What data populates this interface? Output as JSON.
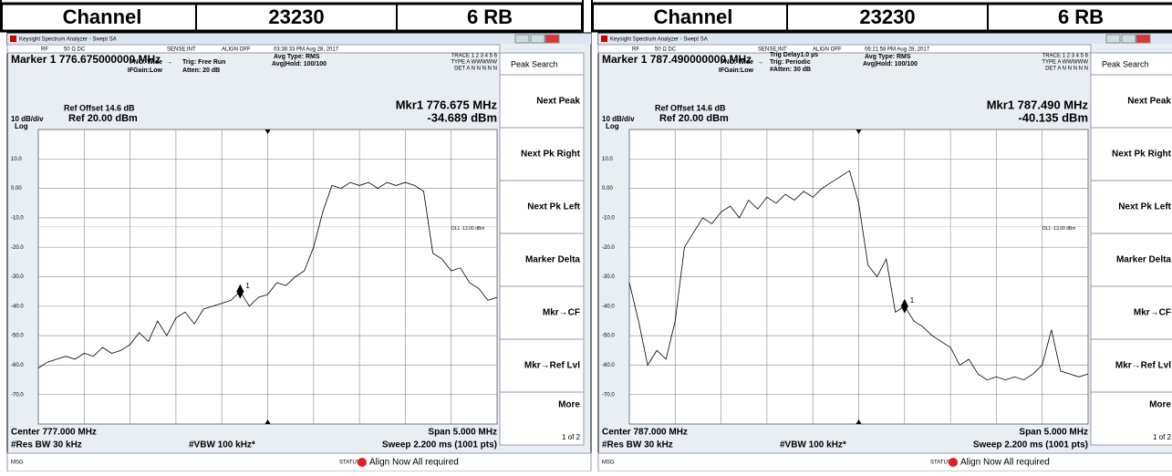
{
  "panels": [
    {
      "header": [
        "Channel",
        "23230",
        "6 RB"
      ],
      "app_title": "Keysight Spectrum Analyzer - Swept SA",
      "status_bar": [
        "RF",
        "50 Ω  DC",
        "SENSE:INT",
        "ALIGN OFF",
        "03:38:33 PM Aug 28, 2017"
      ],
      "marker_readout": "Marker 1 776.675000000 MHz",
      "settings": [
        "PNO: Wide",
        "IFGain:Low",
        "Trig: Free Run",
        "Atten: 20 dB",
        "Avg Type: RMS",
        "Avg|Hold: 100/100"
      ],
      "trace_info": [
        "TRACE 1 2 3 4 5 6",
        "TYPE A WWWWW",
        "DET A N N N N N"
      ],
      "ref_offset": "Ref Offset 14.6 dB",
      "scale": "10 dB/div",
      "ref_level": "Ref 20.00 dBm",
      "log": "Log",
      "mkr_freq": "Mkr1 776.675 MHz",
      "mkr_level": "-34.689 dBm",
      "display_line": "DL1 -13.00 dBm",
      "marker_label": "1",
      "ylim": [
        -80,
        20
      ],
      "yticks": [
        {
          "value": 10,
          "label": "10.0"
        },
        {
          "value": 0,
          "label": "0.00"
        },
        {
          "value": -10,
          "label": "-10.0"
        },
        {
          "value": -20,
          "label": "-20.0"
        },
        {
          "value": -30,
          "label": "-30.0"
        },
        {
          "value": -40,
          "label": "-40.0"
        },
        {
          "value": -50,
          "label": "-50.0"
        },
        {
          "value": -60,
          "label": "-60.0"
        },
        {
          "value": -70,
          "label": "-70.0"
        }
      ],
      "trace": [
        -61,
        -59,
        -58,
        -57,
        -58,
        -56,
        -57,
        -54,
        -56,
        -55,
        -53,
        -49,
        -52,
        -45,
        -50,
        -44,
        -42,
        -46,
        -41,
        -40,
        -39,
        -38,
        -35,
        -40,
        -37,
        -36,
        -32,
        -33,
        -30,
        -28,
        -20,
        -8,
        1,
        0,
        2,
        1,
        2,
        0,
        2,
        1,
        2,
        1,
        -1,
        -22,
        -24,
        -28,
        -27,
        -32,
        -34,
        -38,
        -37
      ],
      "softkeys": [
        "Peak Search",
        "Next Peak",
        "Next Pk Right",
        "Next Pk Left",
        "Marker Delta",
        "Mkr→CF",
        "Mkr→Ref Lvl",
        "More",
        "1 of 2"
      ],
      "bottom": [
        "Center 777.000 MHz",
        "#Res BW 30 kHz",
        "#VBW 100 kHz*",
        "Span 5.000 MHz",
        "Sweep  2.200 ms (1001 pts)"
      ],
      "msg_bar": [
        "MSG",
        "STATUS",
        "Align Now All required"
      ]
    },
    {
      "header": [
        "Channel",
        "23230",
        "6 RB"
      ],
      "app_title": "Keysight Spectrum Analyzer - Swept SA",
      "status_bar": [
        "RF",
        "50 Ω  DC",
        "SENSE:INT",
        "ALIGN OFF",
        "06:21:58 PM Aug 28, 2017"
      ],
      "marker_readout": "Marker 1 787.490000000 MHz",
      "settings": [
        "PNO: Wide",
        "IFGain:Low",
        "Trig Delay1.0 µs",
        "Trig: Periodic",
        "#Atten: 30 dB",
        "Avg Type: RMS",
        "Avg|Hold: 100/100"
      ],
      "trace_info": [
        "TRACE 1 2 3 4 5 6",
        "TYPE A WWWWW",
        "DET A N N N N N"
      ],
      "ref_offset": "Ref Offset 14.6 dB",
      "scale": "10 dB/div",
      "ref_level": "Ref 20.00 dBm",
      "log": "Log",
      "mkr_freq": "Mkr1 787.490 MHz",
      "mkr_level": "-40.135 dBm",
      "display_line": "DL1 -13.00 dBm",
      "marker_label": "1",
      "ylim": [
        -80,
        20
      ],
      "yticks": [
        {
          "value": 10,
          "label": "10.0"
        },
        {
          "value": 0,
          "label": "0.00"
        },
        {
          "value": -10,
          "label": "-10.0"
        },
        {
          "value": -20,
          "label": "-20.0"
        },
        {
          "value": -30,
          "label": "-30.0"
        },
        {
          "value": -40,
          "label": "-40.0"
        },
        {
          "value": -50,
          "label": "-50.0"
        },
        {
          "value": -60,
          "label": "-60.0"
        },
        {
          "value": -70,
          "label": "-70.0"
        }
      ],
      "trace": [
        -32,
        -45,
        -60,
        -55,
        -58,
        -45,
        -20,
        -15,
        -10,
        -12,
        -8,
        -6,
        -10,
        -4,
        -7,
        -3,
        -5,
        -2,
        -4,
        -1,
        -3,
        0,
        2,
        4,
        6,
        -5,
        -26,
        -30,
        -24,
        -42,
        -40,
        -45,
        -47,
        -50,
        -52,
        -54,
        -60,
        -58,
        -63,
        -65,
        -64,
        -65,
        -64,
        -65,
        -63,
        -60,
        -48,
        -62,
        -63,
        -64,
        -63
      ],
      "softkeys": [
        "Peak Search",
        "Next Peak",
        "Next Pk Right",
        "Next Pk Left",
        "Marker Delta",
        "Mkr→CF",
        "Mkr→Ref Lvl",
        "More",
        "1 of 2"
      ],
      "bottom": [
        "Center 787.000 MHz",
        "#Res BW 30 kHz",
        "#VBW 100 kHz*",
        "Span 5.000 MHz",
        "Sweep  2.200 ms (1001 pts)"
      ],
      "msg_bar": [
        "MSG",
        "STATUS",
        "Align Now All required"
      ]
    }
  ]
}
